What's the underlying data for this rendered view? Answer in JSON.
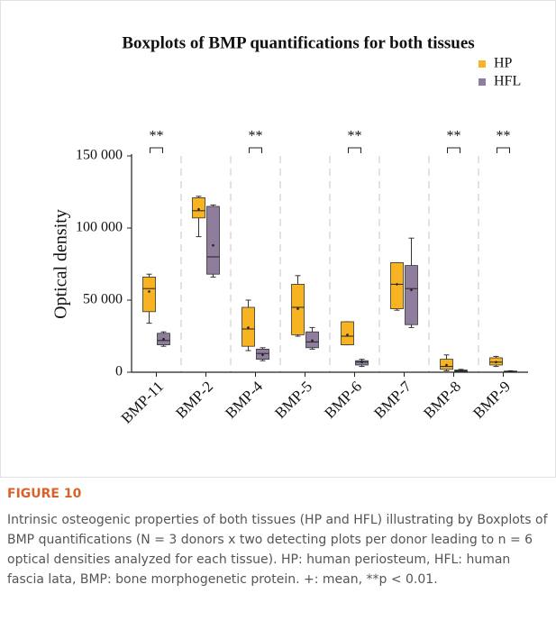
{
  "chart_data": {
    "type": "box",
    "title": "Boxplots of BMP quantifications for both tissues",
    "y_label": "Optical density",
    "categories": [
      "BMP-11",
      "BMP-2",
      "BMP-4",
      "BMP-5",
      "BMP-6",
      "BMP-7",
      "BMP-8",
      "BMP-9"
    ],
    "ylim": [
      0,
      150000
    ],
    "yticks": [
      0,
      {
        "value": 50000,
        "label": "50 000"
      },
      {
        "value": 100000,
        "label": "100 000"
      },
      {
        "value": 150000,
        "label": "150 000"
      }
    ],
    "legend": "upper right",
    "series": [
      {
        "name": "HP",
        "color": "#f7b321",
        "boxes": [
          {
            "min": 34000,
            "q1": 42000,
            "median": 58000,
            "q3": 66000,
            "max": 68000,
            "mean": 56000
          },
          {
            "min": 94000,
            "q1": 107000,
            "median": 112000,
            "q3": 121000,
            "max": 122000,
            "mean": 113000
          },
          {
            "min": 15000,
            "q1": 18000,
            "median": 30000,
            "q3": 45000,
            "max": 50000,
            "mean": 31000
          },
          {
            "min": 25000,
            "q1": 26000,
            "median": 45000,
            "q3": 61000,
            "max": 67000,
            "mean": 44000
          },
          {
            "min": 19000,
            "q1": 19000,
            "median": 25000,
            "q3": 35000,
            "max": 35000,
            "mean": 26000
          },
          {
            "min": 43000,
            "q1": 44000,
            "median": 61000,
            "q3": 76000,
            "max": 76000,
            "mean": 61000
          },
          {
            "min": 1000,
            "q1": 2000,
            "median": 4000,
            "q3": 9000,
            "max": 12000,
            "mean": 5000
          },
          {
            "min": 4000,
            "q1": 5000,
            "median": 7000,
            "q3": 10000,
            "max": 11000,
            "mean": 7000
          }
        ]
      },
      {
        "name": "HFL",
        "color": "#8e7d9c",
        "boxes": [
          {
            "min": 18000,
            "q1": 19000,
            "median": 22000,
            "q3": 27000,
            "max": 28000,
            "mean": 23000
          },
          {
            "min": 66000,
            "q1": 68000,
            "median": 80000,
            "q3": 115000,
            "max": 116000,
            "mean": 88000
          },
          {
            "min": 8000,
            "q1": 9000,
            "median": 13000,
            "q3": 16000,
            "max": 17000,
            "mean": 12000
          },
          {
            "min": 16000,
            "q1": 17000,
            "median": 21000,
            "q3": 28000,
            "max": 31000,
            "mean": 22000
          },
          {
            "min": 4000,
            "q1": 5000,
            "median": 7000,
            "q3": 8000,
            "max": 9000,
            "mean": 7000
          },
          {
            "min": 31000,
            "q1": 33000,
            "median": 58000,
            "q3": 74000,
            "max": 93000,
            "mean": 57000
          },
          {
            "min": 0,
            "q1": 500,
            "median": 1000,
            "q3": 1500,
            "max": 2000,
            "mean": 1000
          },
          {
            "min": 0,
            "q1": 200,
            "median": 500,
            "q3": 800,
            "max": 1000,
            "mean": 500
          }
        ]
      }
    ],
    "annotations": [
      {
        "category": "BMP-11",
        "text": "**"
      },
      {
        "category": "BMP-4",
        "text": "**"
      },
      {
        "category": "BMP-6",
        "text": "**"
      },
      {
        "category": "BMP-8",
        "text": "**"
      },
      {
        "category": "BMP-9",
        "text": "**"
      }
    ]
  },
  "caption": {
    "label": "FIGURE 10",
    "text": "Intrinsic osteogenic properties of both tissues (HP and HFL) illustrating by Boxplots of BMP quantifications (N = 3 donors x two detecting plots per donor leading to n = 6 optical densities analyzed for each tissue). HP: human periosteum, HFL: human fascia lata, BMP: bone morphogenetic protein. +: mean, **p < 0.01."
  }
}
